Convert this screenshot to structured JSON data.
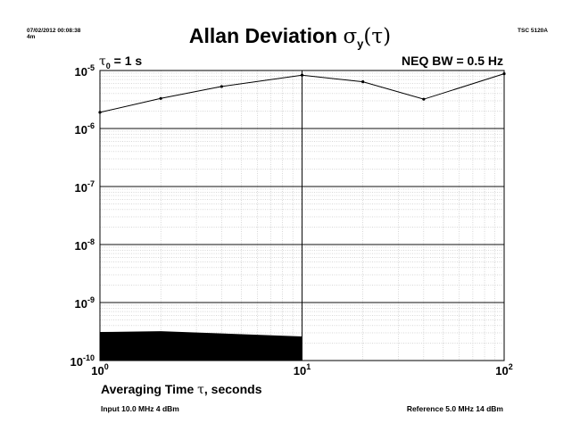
{
  "header": {
    "timestamp_line1": "07/02/2012 00:08:38",
    "timestamp_line2": "4m",
    "device": "TSC 5120A"
  },
  "chart_data": {
    "type": "line",
    "title_prefix": "Allan Deviation ",
    "title_symbol": "σ",
    "title_subscript": "y",
    "title_suffix": "(τ)",
    "tau0_symbol": "τ",
    "tau0_subscript": "0",
    "tau0_value": " = 1 s",
    "annotation_right": "NEQ BW = 0.5 Hz",
    "xlabel_prefix": "Averaging Time ",
    "xlabel_symbol": "τ",
    "xlabel_suffix": ", seconds",
    "x_scale": "log",
    "y_scale": "log",
    "xlim": [
      1,
      100
    ],
    "ylim": [
      1e-10,
      1e-05
    ],
    "x_ticks": [
      {
        "base": "10",
        "exp": "0",
        "value": 1
      },
      {
        "base": "10",
        "exp": "1",
        "value": 10
      },
      {
        "base": "10",
        "exp": "2",
        "value": 100
      }
    ],
    "y_ticks": [
      {
        "base": "10",
        "exp": "-5",
        "value": 1e-05
      },
      {
        "base": "10",
        "exp": "-6",
        "value": 1e-06
      },
      {
        "base": "10",
        "exp": "-7",
        "value": 1e-07
      },
      {
        "base": "10",
        "exp": "-8",
        "value": 1e-08
      },
      {
        "base": "10",
        "exp": "-9",
        "value": 1e-09
      },
      {
        "base": "10",
        "exp": "-10",
        "value": 1e-10
      }
    ],
    "grid": true,
    "series": [
      {
        "type": "line",
        "x": [
          1,
          2,
          4,
          10,
          20,
          40,
          100
        ],
        "y": [
          1.9e-06,
          3.3e-06,
          5.3e-06,
          8.3e-06,
          6.4e-06,
          3.2e-06,
          8.8e-06
        ]
      }
    ],
    "noise_floor": {
      "type": "area",
      "x": [
        1,
        2,
        10
      ],
      "y": [
        3.1e-10,
        3.2e-10,
        2.6e-10
      ]
    },
    "colors": {
      "line": "#000000",
      "grid": "#b0b0b0",
      "floor": "#000000"
    }
  },
  "footer": {
    "left": "Input 10.0 MHz 4 dBm",
    "right": "Reference 5.0 MHz 14 dBm"
  }
}
